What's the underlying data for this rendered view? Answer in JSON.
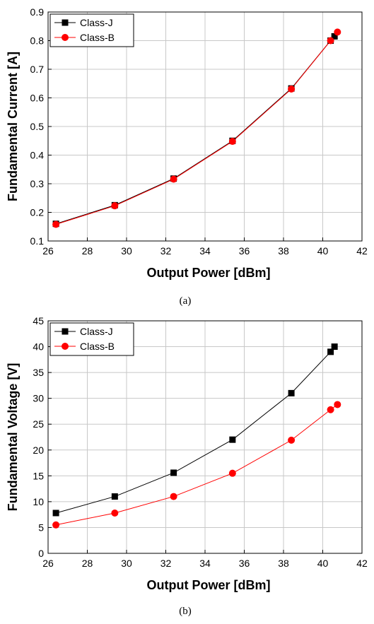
{
  "chart_data": [
    {
      "type": "line",
      "caption": "(a)",
      "xlabel": "Output Power [dBm]",
      "ylabel": "Fundamental Current [A]",
      "xlim": [
        26,
        42
      ],
      "ylim": [
        0.1,
        0.9
      ],
      "xticks": [
        "26",
        "28",
        "30",
        "32",
        "34",
        "36",
        "38",
        "40",
        "42"
      ],
      "yticks": [
        "0.1",
        "0.2",
        "0.3",
        "0.4",
        "0.5",
        "0.6",
        "0.7",
        "0.8",
        "0.9"
      ],
      "grid": true,
      "legend_position": "top-left",
      "series": [
        {
          "name": "Class-J",
          "marker": "square",
          "color": "#000000",
          "x": [
            26.4,
            29.4,
            32.4,
            35.4,
            38.4,
            40.4,
            40.6
          ],
          "y": [
            0.16,
            0.225,
            0.318,
            0.45,
            0.633,
            0.8,
            0.815
          ]
        },
        {
          "name": "Class-B",
          "marker": "circle",
          "color": "#ff0000",
          "x": [
            26.4,
            29.4,
            32.4,
            35.4,
            38.4,
            40.4,
            40.75
          ],
          "y": [
            0.158,
            0.223,
            0.316,
            0.448,
            0.631,
            0.8,
            0.83
          ]
        }
      ]
    },
    {
      "type": "line",
      "caption": "(b)",
      "xlabel": "Output Power [dBm]",
      "ylabel": "Fundamental Voltage [V]",
      "xlim": [
        26,
        42
      ],
      "ylim": [
        0,
        45
      ],
      "xticks": [
        "26",
        "28",
        "30",
        "32",
        "34",
        "36",
        "38",
        "40",
        "42"
      ],
      "yticks": [
        "0",
        "5",
        "10",
        "15",
        "20",
        "25",
        "30",
        "35",
        "40",
        "45"
      ],
      "grid": true,
      "legend_position": "top-left",
      "series": [
        {
          "name": "Class-J",
          "marker": "square",
          "color": "#000000",
          "x": [
            26.4,
            29.4,
            32.4,
            35.4,
            38.4,
            40.4,
            40.6
          ],
          "y": [
            7.8,
            11.0,
            15.6,
            22.0,
            31.0,
            39.0,
            40.0
          ]
        },
        {
          "name": "Class-B",
          "marker": "circle",
          "color": "#ff0000",
          "x": [
            26.4,
            29.4,
            32.4,
            35.4,
            38.4,
            40.4,
            40.75
          ],
          "y": [
            5.5,
            7.8,
            11.0,
            15.5,
            21.9,
            27.8,
            28.8
          ]
        }
      ]
    }
  ]
}
